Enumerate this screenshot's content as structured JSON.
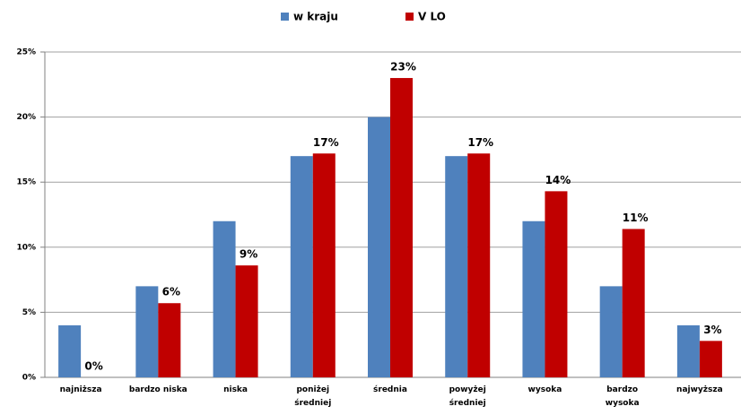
{
  "chart_data": {
    "type": "bar",
    "categories": [
      "najniższa",
      "bardzo niska",
      "niska",
      "poniżej średniej",
      "średnia",
      "powyżej średniej",
      "wysoka",
      "bardzo wysoka",
      "najwyższa"
    ],
    "series": [
      {
        "name": "w kraju",
        "color": "#4f81bd",
        "values": [
          4,
          7,
          12,
          17,
          20,
          17,
          12,
          7,
          4
        ]
      },
      {
        "name": "V LO",
        "color": "#c00000",
        "values": [
          0,
          5.7,
          8.6,
          17.2,
          23,
          17.2,
          14.3,
          11.4,
          2.8
        ],
        "value_labels": [
          "0%",
          "6%",
          "9%",
          "17%",
          "23%",
          "17%",
          "14%",
          "11%",
          "3%"
        ]
      }
    ],
    "ylim": [
      0,
      25
    ],
    "yticks": [
      {
        "value": 0,
        "label": "0%"
      },
      {
        "value": 5,
        "label": "5%"
      },
      {
        "value": 10,
        "label": "10%"
      },
      {
        "value": 15,
        "label": "15%"
      },
      {
        "value": 20,
        "label": "20%"
      },
      {
        "value": 25,
        "label": "25%"
      }
    ],
    "grid": true,
    "legend": "top"
  }
}
